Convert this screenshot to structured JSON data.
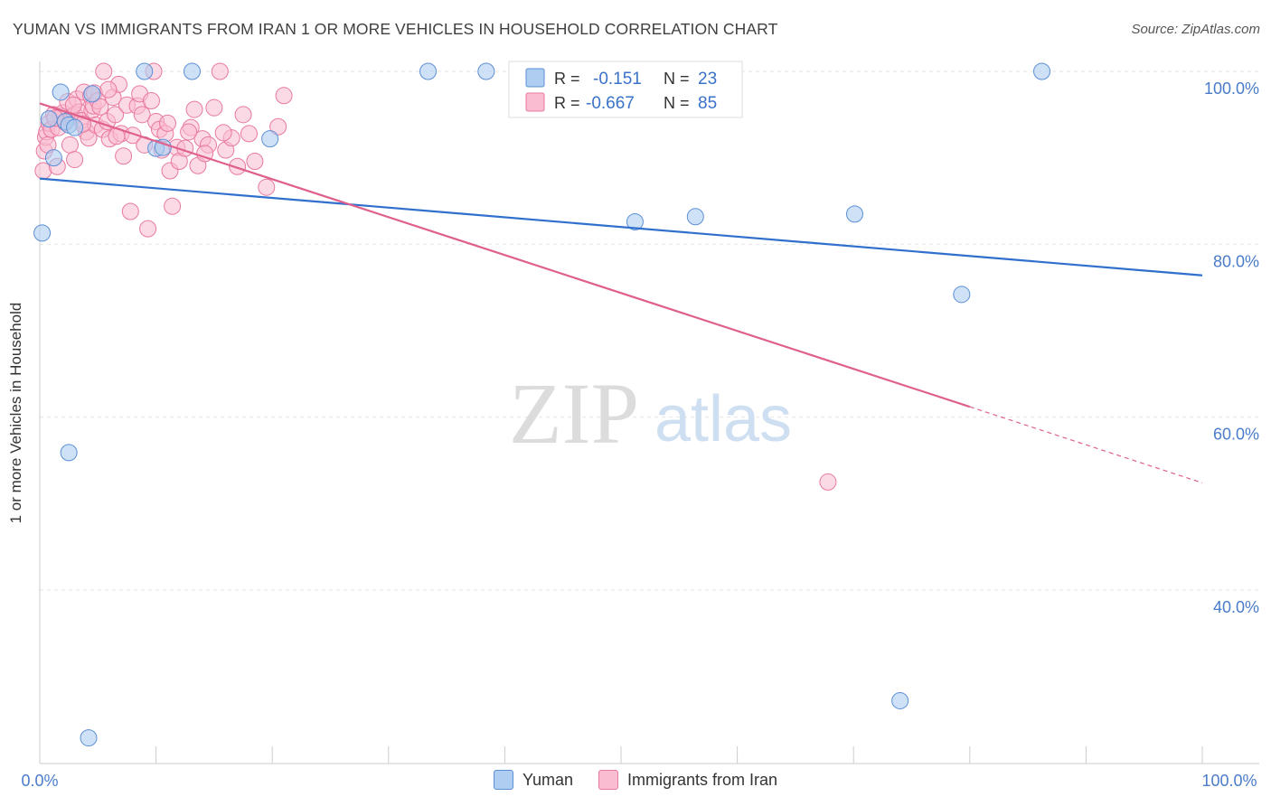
{
  "title": "YUMAN VS IMMIGRANTS FROM IRAN 1 OR MORE VEHICLES IN HOUSEHOLD CORRELATION CHART",
  "source": "Source: ZipAtlas.com",
  "watermark": {
    "zip": "ZIP",
    "atlas": "atlas"
  },
  "legend_box": [
    {
      "r_label": "R =",
      "r_value": "-0.151",
      "n_label": "N =",
      "n_value": "23"
    },
    {
      "r_label": "R =",
      "r_value": "-0.667",
      "n_label": "N =",
      "n_value": "85"
    }
  ],
  "bottom_legend": [
    "Yuman",
    "Immigrants from Iran"
  ],
  "colors": {
    "yuman_fill": "#aecdf0",
    "yuman_stroke": "#5b8fd6",
    "yuman_line": "#3070cc",
    "iran_fill": "#f9bcd0",
    "iran_stroke": "#e8799f",
    "iran_line": "#e0608c",
    "axis_text": "#4a7cc9",
    "grid": "#e6e6e6"
  },
  "chart_data": {
    "type": "scatter",
    "xlabel": "",
    "ylabel": "1 or more Vehicles in Household",
    "xlim": [
      0,
      100
    ],
    "ylim": [
      20,
      103
    ],
    "x_tick_labels": [
      "0.0%",
      "100.0%"
    ],
    "y_ticks": [
      40,
      60,
      80,
      100
    ],
    "y_tick_labels": [
      "40.0%",
      "60.0%",
      "80.0%",
      "100.0%"
    ],
    "grid": true,
    "series": [
      {
        "name": "Yuman",
        "points": [
          [
            0.2,
            81.3
          ],
          [
            1.8,
            97.6
          ],
          [
            2.2,
            94.2
          ],
          [
            2.5,
            93.8
          ],
          [
            1.2,
            90.0
          ],
          [
            2.5,
            55.9
          ],
          [
            4.2,
            22.9
          ],
          [
            4.5,
            97.4
          ],
          [
            9.0,
            100.0
          ],
          [
            10.0,
            91.1
          ],
          [
            10.6,
            91.2
          ],
          [
            13.1,
            100.0
          ],
          [
            19.8,
            92.2
          ],
          [
            33.4,
            100.0
          ],
          [
            38.4,
            100.0
          ],
          [
            51.2,
            82.6
          ],
          [
            56.4,
            83.2
          ],
          [
            70.1,
            83.5
          ],
          [
            74.0,
            27.2
          ],
          [
            79.3,
            74.2
          ],
          [
            86.2,
            100.0
          ],
          [
            0.8,
            94.5
          ],
          [
            3.0,
            93.5
          ]
        ],
        "trend": {
          "x": [
            0,
            100
          ],
          "y": [
            87.6,
            76.4
          ]
        }
      },
      {
        "name": "Immigrants from Iran",
        "points": [
          [
            0.3,
            88.5
          ],
          [
            0.4,
            90.8
          ],
          [
            0.5,
            92.4
          ],
          [
            0.6,
            93.0
          ],
          [
            0.7,
            91.5
          ],
          [
            0.8,
            94.0
          ],
          [
            1.0,
            93.3
          ],
          [
            1.2,
            95.0
          ],
          [
            1.5,
            89.0
          ],
          [
            1.6,
            93.5
          ],
          [
            1.8,
            94.8
          ],
          [
            2.0,
            95.2
          ],
          [
            2.2,
            94.1
          ],
          [
            2.4,
            96.5
          ],
          [
            2.6,
            91.5
          ],
          [
            2.8,
            94.8
          ],
          [
            3.0,
            95.0
          ],
          [
            3.0,
            89.8
          ],
          [
            3.2,
            96.8
          ],
          [
            3.4,
            95.3
          ],
          [
            3.6,
            94.3
          ],
          [
            3.8,
            97.6
          ],
          [
            4.0,
            93.0
          ],
          [
            4.2,
            92.3
          ],
          [
            4.4,
            97.2
          ],
          [
            4.5,
            95.5
          ],
          [
            4.6,
            96.0
          ],
          [
            4.7,
            97.5
          ],
          [
            4.8,
            93.8
          ],
          [
            5.0,
            96.6
          ],
          [
            5.2,
            95.9
          ],
          [
            5.4,
            93.3
          ],
          [
            5.5,
            100.0
          ],
          [
            5.8,
            94.2
          ],
          [
            6.0,
            92.2
          ],
          [
            6.3,
            97.0
          ],
          [
            6.5,
            95.0
          ],
          [
            6.8,
            98.5
          ],
          [
            7.0,
            92.8
          ],
          [
            7.2,
            90.2
          ],
          [
            7.5,
            96.1
          ],
          [
            7.8,
            83.8
          ],
          [
            8.0,
            92.6
          ],
          [
            8.4,
            96.0
          ],
          [
            8.6,
            97.4
          ],
          [
            8.8,
            95.0
          ],
          [
            9.0,
            91.5
          ],
          [
            9.3,
            81.8
          ],
          [
            9.6,
            96.6
          ],
          [
            9.8,
            100.0
          ],
          [
            10.0,
            94.2
          ],
          [
            10.3,
            93.3
          ],
          [
            10.5,
            90.9
          ],
          [
            10.8,
            92.8
          ],
          [
            11.2,
            88.5
          ],
          [
            11.4,
            84.4
          ],
          [
            11.8,
            91.2
          ],
          [
            12.0,
            89.6
          ],
          [
            12.5,
            91.1
          ],
          [
            13.0,
            93.5
          ],
          [
            13.3,
            95.6
          ],
          [
            13.6,
            89.1
          ],
          [
            14.0,
            92.2
          ],
          [
            14.5,
            91.5
          ],
          [
            15.0,
            95.8
          ],
          [
            15.5,
            100.0
          ],
          [
            16.0,
            90.9
          ],
          [
            16.5,
            92.3
          ],
          [
            17.0,
            89.0
          ],
          [
            17.5,
            95.0
          ],
          [
            18.0,
            92.8
          ],
          [
            18.5,
            89.6
          ],
          [
            19.5,
            86.6
          ],
          [
            20.5,
            93.6
          ],
          [
            21.0,
            97.2
          ],
          [
            1.3,
            94.6
          ],
          [
            2.9,
            96.1
          ],
          [
            3.7,
            93.9
          ],
          [
            5.9,
            97.9
          ],
          [
            6.6,
            92.5
          ],
          [
            11.0,
            94.0
          ],
          [
            12.8,
            93.0
          ],
          [
            14.2,
            90.5
          ],
          [
            15.8,
            92.9
          ],
          [
            67.8,
            52.5
          ]
        ],
        "trend": {
          "x": [
            0,
            80
          ],
          "y": [
            96.3,
            61.2
          ]
        },
        "trend_extension": {
          "x": [
            80,
            100
          ],
          "y": [
            61.2,
            52.4
          ]
        }
      }
    ]
  }
}
